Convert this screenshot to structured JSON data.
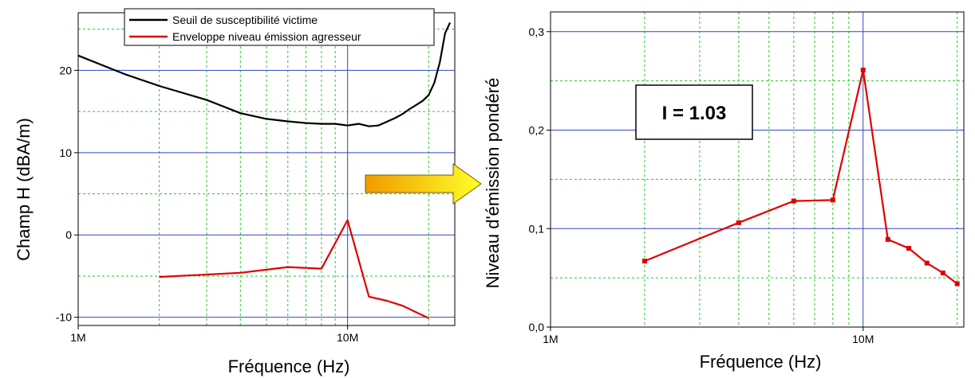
{
  "chart_data": [
    {
      "type": "line",
      "title": "",
      "xlabel": "Fréquence (Hz)",
      "ylabel": "Champ H (dBA/m)",
      "x_scale": "log",
      "xlim": [
        1000000,
        25000000
      ],
      "ylim": [
        -11,
        27
      ],
      "x_tick_labels": [
        "1M",
        "10M"
      ],
      "y_ticks": [
        -10,
        0,
        10,
        20
      ],
      "grid": true,
      "legend_position": "top-center",
      "series": [
        {
          "name": "Seuil de susceptibilité victime",
          "color": "#000000",
          "x": [
            1000000,
            1500000,
            2000000,
            3000000,
            4000000,
            5000000,
            6000000,
            7000000,
            8000000,
            9000000,
            10000000,
            11000000,
            12000000,
            13000000,
            15000000,
            16000000,
            17000000,
            18000000,
            19000000,
            20000000,
            21000000,
            22000000,
            23000000,
            24000000
          ],
          "y": [
            21.8,
            19.5,
            18.1,
            16.4,
            14.8,
            14.1,
            13.8,
            13.6,
            13.5,
            13.5,
            13.3,
            13.5,
            13.2,
            13.3,
            14.2,
            14.7,
            15.3,
            15.8,
            16.3,
            17.0,
            18.5,
            21.0,
            24.5,
            25.8
          ]
        },
        {
          "name": "Enveloppe niveau émission agresseur",
          "color": "#e00000",
          "x": [
            2000000,
            4000000,
            6000000,
            8000000,
            10000000,
            12000000,
            14000000,
            16000000,
            18000000,
            20000000
          ],
          "y": [
            -5.1,
            -4.6,
            -3.9,
            -4.1,
            1.8,
            -7.5,
            -8.0,
            -8.6,
            -9.4,
            -10.1
          ]
        }
      ]
    },
    {
      "type": "line",
      "title": "",
      "xlabel": "Fréquence (Hz)",
      "ylabel": "Niveau d'émission pondéré",
      "x_scale": "log",
      "xlim": [
        1000000,
        21000000
      ],
      "ylim": [
        0,
        0.32
      ],
      "x_tick_labels": [
        "1M",
        "10M"
      ],
      "y_ticks": [
        0.0,
        0.1,
        0.2,
        0.3
      ],
      "y_tick_labels": [
        "0,0",
        "0,1",
        "0,2",
        "0,3"
      ],
      "grid": true,
      "annotation": "I = 1.03",
      "series": [
        {
          "color": "#e00000",
          "marker": "square",
          "x": [
            2000000,
            4000000,
            6000000,
            8000000,
            10000000,
            12000000,
            14000000,
            16000000,
            18000000,
            20000000
          ],
          "y": [
            0.067,
            0.106,
            0.128,
            0.129,
            0.261,
            0.089,
            0.08,
            0.065,
            0.055,
            0.044
          ]
        }
      ]
    }
  ]
}
